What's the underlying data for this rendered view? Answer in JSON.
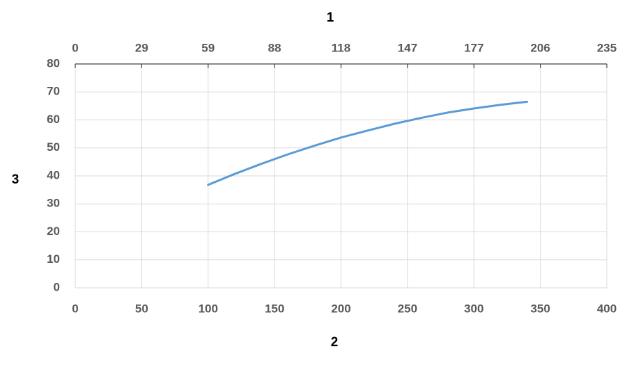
{
  "chart_data": {
    "type": "line",
    "title": "1",
    "xlabel": "2",
    "ylabel": "3",
    "x": [
      100,
      120,
      140,
      160,
      180,
      200,
      220,
      240,
      260,
      280,
      300,
      320,
      340
    ],
    "series": [
      {
        "color": "#5b9bd5",
        "values": [
          36.8,
          40.7,
          44.3,
          47.7,
          50.8,
          53.7,
          56.2,
          58.6,
          60.7,
          62.6,
          64.1,
          65.4,
          66.5
        ]
      }
    ],
    "xlim": [
      0,
      400
    ],
    "xticks": [
      0,
      50,
      100,
      150,
      200,
      250,
      300,
      350,
      400
    ],
    "x2lim": [
      0,
      235.4
    ],
    "x2ticks": [
      0,
      {
        "value": 29.425,
        "label": "29"
      },
      {
        "value": 58.85,
        "label": "59"
      },
      {
        "value": 88.275,
        "label": "88"
      },
      {
        "value": 117.7,
        "label": "118"
      },
      {
        "value": 147.125,
        "label": "147"
      },
      {
        "value": 176.55,
        "label": "177"
      },
      {
        "value": 205.975,
        "label": "206"
      },
      {
        "value": 235.4,
        "label": "235"
      }
    ],
    "ylim": [
      0,
      80
    ],
    "yticks": [
      0,
      10,
      20,
      30,
      40,
      50,
      60,
      70,
      80
    ],
    "grid": true
  }
}
